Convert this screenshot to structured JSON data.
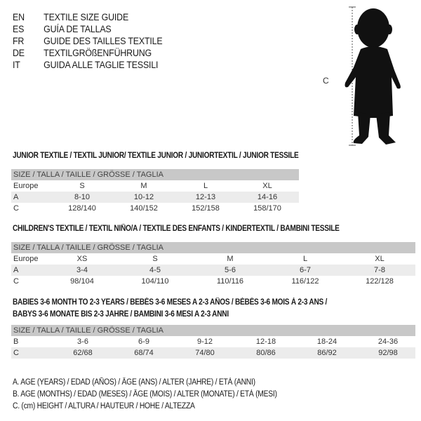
{
  "titles": [
    {
      "code": "EN",
      "text": "TEXTILE SIZE GUIDE"
    },
    {
      "code": "ES",
      "text": "GUÍA DE TALLAS"
    },
    {
      "code": "FR",
      "text": "GUIDE DES TAILLES TEXTILE"
    },
    {
      "code": "DE",
      "text": "TEXTILGRÖßENFÜHRUNG"
    },
    {
      "code": "IT",
      "text": "GUIDA ALLE TAGLIE TESSILI"
    }
  ],
  "figure": {
    "measure_label": "C"
  },
  "junior": {
    "title": "JUNIOR TEXTILE / TEXTIL JUNIOR/ TEXTILE JUNIOR / JUNIORTEXTIL / JUNIOR TESSILE",
    "header": "SIZE / TALLA / TAILLE / GRÖSSE / TAGLIA",
    "rows": [
      {
        "label": "Europe",
        "values": [
          "S",
          "M",
          "L",
          "XL"
        ]
      },
      {
        "label": "A",
        "values": [
          "8-10",
          "10-12",
          "12-13",
          "14-16"
        ]
      },
      {
        "label": "C",
        "values": [
          "128/140",
          "140/152",
          "152/158",
          "158/170"
        ]
      }
    ]
  },
  "children": {
    "title": "CHILDREN'S TEXTILE / TEXTIL NIÑO/A / TEXTILE DES ENFANTS / KINDERTEXTIL / BAMBINI TESSILE",
    "header": "SIZE / TALLA / TAILLE / GRÖSSE / TAGLIA",
    "rows": [
      {
        "label": "Europe",
        "values": [
          "XS",
          "S",
          "M",
          "L",
          "XL"
        ]
      },
      {
        "label": "A",
        "values": [
          "3-4",
          "4-5",
          "5-6",
          "6-7",
          "7-8"
        ]
      },
      {
        "label": "C",
        "values": [
          "98/104",
          "104/110",
          "110/116",
          "116/122",
          "122/128"
        ]
      }
    ]
  },
  "babies": {
    "title_line1": "BABIES 3-6 MONTH TO 2-3 YEARS / BEBÉS 3-6 MESES A 2-3 AÑOS / BÉBÉS 3-6 MOIS À 2-3 ANS /",
    "title_line2": "BABYS 3-6 MONATE BIS 2-3 JAHRE / BAMBINI 3-6 MESI A 2-3 ANNI",
    "header": "SIZE / TALLA / TAILLE / GRÖSSE / TAGLIA",
    "rows": [
      {
        "label": "B",
        "values": [
          "3-6",
          "6-9",
          "9-12",
          "12-18",
          "18-24",
          "24-36"
        ]
      },
      {
        "label": "C",
        "values": [
          "62/68",
          "68/74",
          "74/80",
          "80/86",
          "86/92",
          "92/98"
        ]
      }
    ]
  },
  "notes": [
    "A. AGE (YEARS) / EDAD (AÑOS) / ÂGE (ANS) / ALTER (JAHRE) / ETÀ (ANNI)",
    "B. AGE (MONTHS) / EDAD (MESES) / ÂGE (MOIS) / ALTER (MONATE) / ETÀ (MESI)",
    "C. (cm) HEIGHT / ALTURA / HAUTEUR / HÖHE / ALTEZZA"
  ]
}
